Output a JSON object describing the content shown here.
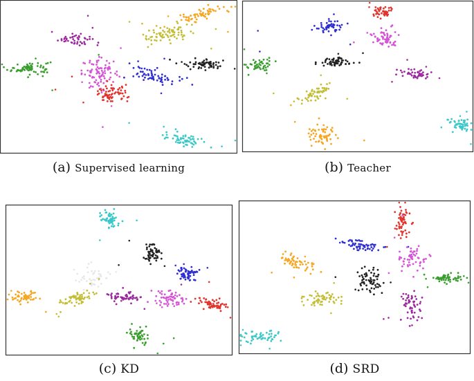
{
  "chart_data": [
    {
      "type": "scatter",
      "label": "(a)",
      "title": "Supervised learning",
      "smallcaps": false,
      "xlim": [
        0,
        100
      ],
      "ylim": [
        0,
        100
      ],
      "clusters": [
        {
          "color": "#3a9e2e",
          "cx": 11,
          "cy": 56,
          "sx": 4.5,
          "sy": 2.2,
          "n": 70,
          "tilt": 0.1
        },
        {
          "color": "#9b2a9e",
          "cx": 31,
          "cy": 76,
          "sx": 3.8,
          "sy": 2.3,
          "n": 45,
          "tilt": -0.1
        },
        {
          "color": "#d455d6",
          "cx": 42,
          "cy": 52,
          "sx": 4.0,
          "sy": 5.0,
          "n": 90,
          "tilt": 0
        },
        {
          "color": "#e0342c",
          "cx": 47,
          "cy": 38,
          "sx": 3.6,
          "sy": 3.0,
          "n": 65,
          "tilt": 0
        },
        {
          "color": "#2f2fd0",
          "cx": 66,
          "cy": 51,
          "sx": 5.0,
          "sy": 2.6,
          "n": 65,
          "tilt": -0.2
        },
        {
          "color": "#c4be36",
          "cx": 71,
          "cy": 79,
          "sx": 5.5,
          "sy": 3.4,
          "n": 75,
          "tilt": 0.25
        },
        {
          "color": "#f5a623",
          "cx": 86,
          "cy": 93,
          "sx": 4.5,
          "sy": 2.6,
          "n": 60,
          "tilt": 0.3
        },
        {
          "color": "#222222",
          "cx": 87,
          "cy": 59,
          "sx": 5.0,
          "sy": 1.8,
          "n": 55,
          "tilt": -0.05
        },
        {
          "color": "#3cc8c8",
          "cx": 78,
          "cy": 7,
          "sx": 4.0,
          "sy": 2.4,
          "n": 60,
          "tilt": -0.1
        }
      ]
    },
    {
      "type": "scatter",
      "label": "(b)",
      "title": "Teacher",
      "smallcaps": false,
      "xlim": [
        0,
        100
      ],
      "ylim": [
        0,
        100
      ],
      "clusters": [
        {
          "color": "#3a9e2e",
          "cx": 6,
          "cy": 58,
          "sx": 2.8,
          "sy": 2.3,
          "n": 45,
          "tilt": 0
        },
        {
          "color": "#2f2fd0",
          "cx": 37,
          "cy": 85,
          "sx": 3.0,
          "sy": 2.4,
          "n": 50,
          "tilt": 0
        },
        {
          "color": "#e0342c",
          "cx": 61,
          "cy": 95,
          "sx": 2.5,
          "sy": 2.2,
          "n": 45,
          "tilt": 0
        },
        {
          "color": "#d455d6",
          "cx": 62,
          "cy": 77,
          "sx": 2.8,
          "sy": 3.2,
          "n": 60,
          "tilt": 0
        },
        {
          "color": "#222222",
          "cx": 40,
          "cy": 60,
          "sx": 4.0,
          "sy": 1.6,
          "n": 60,
          "tilt": 0
        },
        {
          "color": "#9b2a9e",
          "cx": 76,
          "cy": 52,
          "sx": 3.0,
          "sy": 1.8,
          "n": 50,
          "tilt": -0.2
        },
        {
          "color": "#c4be36",
          "cx": 31,
          "cy": 38,
          "sx": 3.5,
          "sy": 2.6,
          "n": 55,
          "tilt": 0.4
        },
        {
          "color": "#f5a623",
          "cx": 34,
          "cy": 10,
          "sx": 3.0,
          "sy": 3.4,
          "n": 60,
          "tilt": 0
        },
        {
          "color": "#3cc8c8",
          "cx": 95,
          "cy": 16,
          "sx": 3.0,
          "sy": 2.4,
          "n": 50,
          "tilt": 0
        }
      ]
    },
    {
      "type": "scatter",
      "label": "(c)",
      "title": "KD",
      "smallcaps": true,
      "xlim": [
        0,
        100
      ],
      "ylim": [
        0,
        100
      ],
      "clusters": [
        {
          "color": "#3cc8c8",
          "cx": 46,
          "cy": 93,
          "sx": 2.4,
          "sy": 3.0,
          "n": 55,
          "tilt": -0.3
        },
        {
          "color": "#222222",
          "cx": 65,
          "cy": 68,
          "sx": 2.0,
          "sy": 4.0,
          "n": 55,
          "tilt": 0
        },
        {
          "color": "#e8e8e8",
          "cx": 38,
          "cy": 52,
          "sx": 4.0,
          "sy": 4.0,
          "n": 40,
          "tilt": 0
        },
        {
          "color": "#2f2fd0",
          "cx": 81,
          "cy": 54,
          "sx": 2.6,
          "sy": 2.6,
          "n": 55,
          "tilt": 0.2
        },
        {
          "color": "#f5a623",
          "cx": 7,
          "cy": 38,
          "sx": 3.2,
          "sy": 2.2,
          "n": 50,
          "tilt": 0
        },
        {
          "color": "#c4be36",
          "cx": 31,
          "cy": 37,
          "sx": 3.5,
          "sy": 2.6,
          "n": 60,
          "tilt": 0.4
        },
        {
          "color": "#9b2a9e",
          "cx": 52,
          "cy": 38,
          "sx": 3.8,
          "sy": 2.0,
          "n": 55,
          "tilt": 0
        },
        {
          "color": "#d455d6",
          "cx": 73,
          "cy": 37,
          "sx": 3.8,
          "sy": 2.8,
          "n": 60,
          "tilt": 0
        },
        {
          "color": "#e0342c",
          "cx": 92,
          "cy": 33,
          "sx": 3.2,
          "sy": 2.2,
          "n": 55,
          "tilt": -0.3
        },
        {
          "color": "#3a9e2e",
          "cx": 59,
          "cy": 11,
          "sx": 2.4,
          "sy": 3.2,
          "n": 50,
          "tilt": 0
        }
      ]
    },
    {
      "type": "scatter",
      "label": "(d)",
      "title": "SRD",
      "smallcaps": true,
      "xlim": [
        0,
        100
      ],
      "ylim": [
        0,
        100
      ],
      "clusters": [
        {
          "color": "#e0342c",
          "cx": 71,
          "cy": 87,
          "sx": 1.8,
          "sy": 5.5,
          "n": 55,
          "tilt": 0
        },
        {
          "color": "#2f2fd0",
          "cx": 53,
          "cy": 72,
          "sx": 4.5,
          "sy": 2.2,
          "n": 55,
          "tilt": -0.4
        },
        {
          "color": "#d455d6",
          "cx": 76,
          "cy": 63,
          "sx": 3.0,
          "sy": 3.8,
          "n": 55,
          "tilt": 0
        },
        {
          "color": "#f5a623",
          "cx": 24,
          "cy": 60,
          "sx": 3.6,
          "sy": 3.0,
          "n": 55,
          "tilt": -0.5
        },
        {
          "color": "#222222",
          "cx": 57,
          "cy": 48,
          "sx": 2.8,
          "sy": 4.5,
          "n": 65,
          "tilt": 0
        },
        {
          "color": "#3a9e2e",
          "cx": 91,
          "cy": 49,
          "sx": 4.0,
          "sy": 1.8,
          "n": 55,
          "tilt": 0
        },
        {
          "color": "#c4be36",
          "cx": 36,
          "cy": 35,
          "sx": 4.0,
          "sy": 2.2,
          "n": 55,
          "tilt": 0
        },
        {
          "color": "#9b2a9e",
          "cx": 75,
          "cy": 30,
          "sx": 2.2,
          "sy": 5.0,
          "n": 55,
          "tilt": 0
        },
        {
          "color": "#3cc8c8",
          "cx": 7,
          "cy": 9,
          "sx": 4.5,
          "sy": 2.2,
          "n": 55,
          "tilt": 0
        }
      ]
    }
  ]
}
